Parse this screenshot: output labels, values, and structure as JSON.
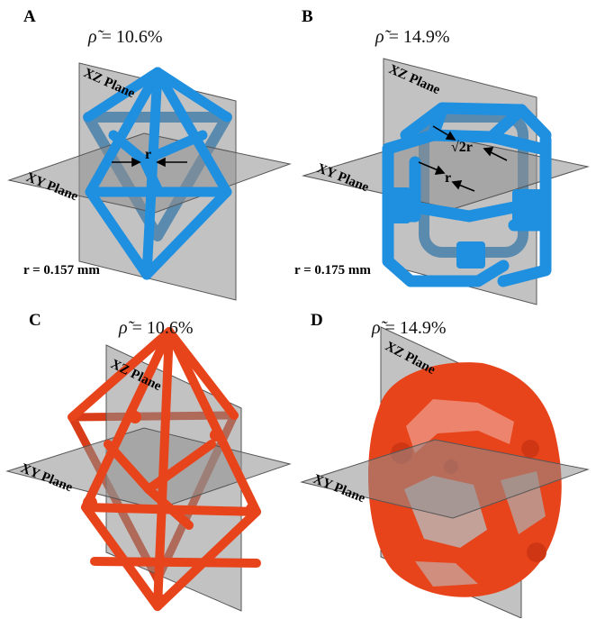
{
  "panels": [
    {
      "letter": "A",
      "density_symbol": "ρ̃",
      "density_value": "= 10.6%",
      "radius_label": "r = 0.157 mm",
      "xz_label": "XZ Plane",
      "xy_label": "XY Plane",
      "dim_label": "r"
    },
    {
      "letter": "B",
      "density_symbol": "ρ̃",
      "density_value": "= 14.9%",
      "radius_label": "r = 0.175 mm",
      "xz_label": "XZ Plane",
      "xy_label": "XY Plane",
      "dim_label": "r",
      "dim_label_2": "√2r"
    },
    {
      "letter": "C",
      "density_symbol": "ρ̃",
      "density_value": "= 10.6%",
      "xz_label": "XZ Plane",
      "xy_label": "XY Plane"
    },
    {
      "letter": "D",
      "density_symbol": "ρ̃",
      "density_value": "= 14.9%",
      "xz_label": "XZ Plane",
      "xy_label": "XY Plane"
    }
  ],
  "colors": {
    "designed_model": "#1f8fe0",
    "printed_model": "#e8441c",
    "plane": "#9a9a9a"
  }
}
